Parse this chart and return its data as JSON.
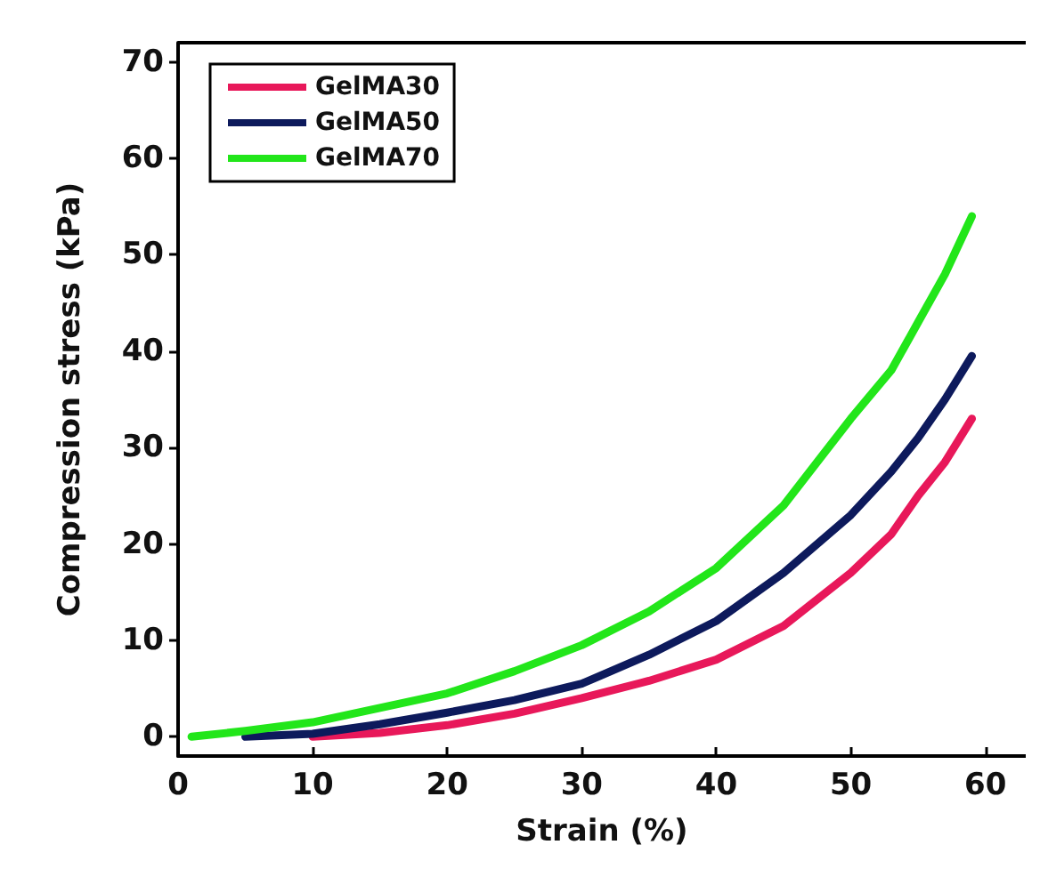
{
  "chart_data": {
    "type": "line",
    "xlabel": "Strain (%)",
    "ylabel": "Compression stress (kPa)",
    "xlim": [
      0,
      63
    ],
    "ylim": [
      -2,
      72
    ],
    "xticks": [
      0,
      10,
      20,
      30,
      40,
      50,
      60
    ],
    "yticks": [
      0,
      10,
      20,
      30,
      40,
      50,
      60,
      70
    ],
    "grid": false,
    "legend": "top left",
    "marker": "none",
    "line_style": "solid",
    "series": [
      {
        "name": "GelMA30",
        "color": "#e8185a",
        "x": [
          10,
          15,
          20,
          25,
          30,
          35,
          40,
          45,
          50,
          53,
          55,
          57,
          59
        ],
        "values": [
          0,
          0.4,
          1.2,
          2.4,
          4,
          5.8,
          8,
          11.5,
          17,
          21,
          25,
          28.5,
          33
        ]
      },
      {
        "name": "GelMA50",
        "color": "#0d1a5c",
        "x": [
          5,
          10,
          15,
          20,
          25,
          30,
          35,
          40,
          45,
          50,
          53,
          55,
          57,
          59
        ],
        "values": [
          0,
          0.3,
          1.3,
          2.5,
          3.8,
          5.5,
          8.5,
          12,
          17,
          23,
          27.5,
          31,
          35,
          39.5
        ]
      },
      {
        "name": "GelMA70",
        "color": "#22e61a",
        "x": [
          1,
          5,
          10,
          15,
          20,
          25,
          30,
          35,
          40,
          45,
          50,
          53,
          55,
          57,
          59
        ],
        "values": [
          0,
          0.6,
          1.5,
          3,
          4.5,
          6.8,
          9.5,
          13,
          17.5,
          24,
          33,
          38,
          43,
          48,
          54
        ]
      }
    ]
  }
}
